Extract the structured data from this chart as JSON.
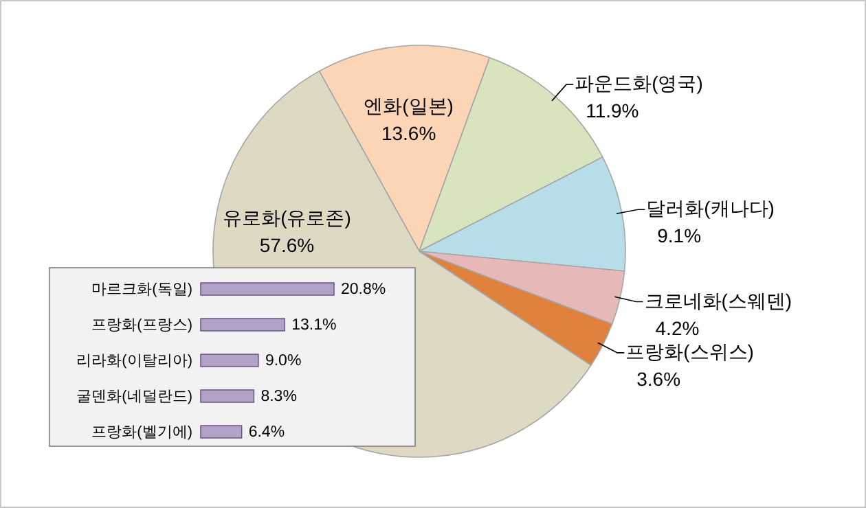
{
  "chart_data": [
    {
      "type": "pie",
      "categories": [
        "엔화(일본)",
        "파운드화(영국)",
        "달러화(캐나다)",
        "크로네화(스웨덴)",
        "프랑화(스위스)",
        "유로화(유로존)"
      ],
      "values": [
        13.6,
        11.9,
        9.1,
        4.2,
        3.6,
        57.6
      ],
      "colors": [
        "#fbd5b5",
        "#d7e4bd",
        "#b7dee8",
        "#e6b9b8",
        "#e0823d",
        "#ddd9c3"
      ],
      "value_labels": [
        "13.6%",
        "11.9%",
        "9.1%",
        "4.2%",
        "3.6%",
        "57.6%"
      ]
    },
    {
      "type": "bar",
      "orientation": "horizontal",
      "categories": [
        "마르크화(독일)",
        "프랑화(프랑스)",
        "리라화(이탈리아)",
        "굴덴화(네덜란드)",
        "프랑화(벨기에)"
      ],
      "values": [
        20.8,
        13.1,
        9.0,
        8.3,
        6.4
      ],
      "color": "#b3a2c7",
      "value_labels": [
        "20.8%",
        "13.1%",
        "9.0%",
        "8.3%",
        "6.4%"
      ]
    }
  ]
}
